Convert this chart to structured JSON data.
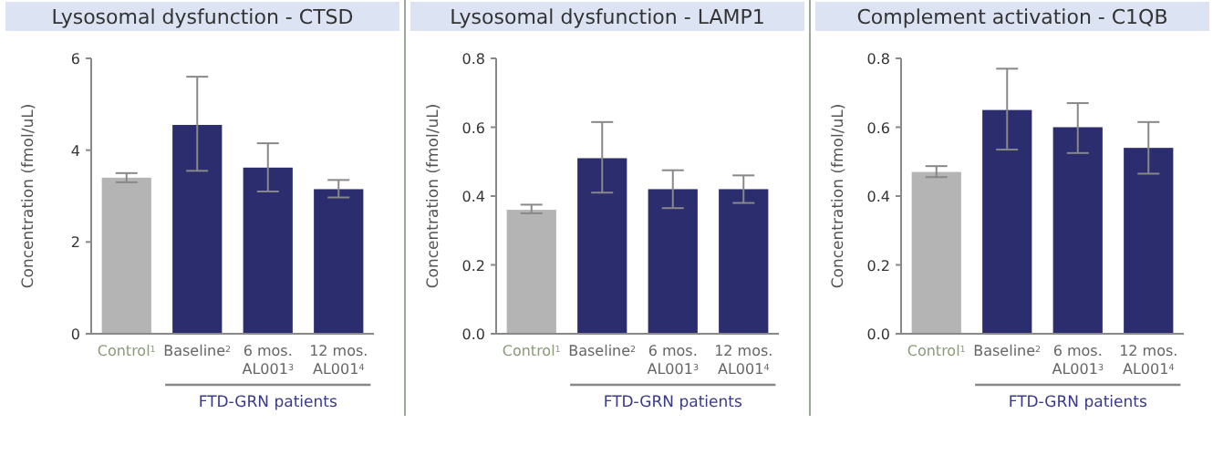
{
  "chart_data": [
    {
      "type": "bar",
      "title": "Lysosomal dysfunction - CTSD",
      "ylabel": "Concentration (fmol/uL)",
      "categories": [
        "Control$^{1}$",
        "Baseline$^{2}$",
        "6 mos.\nAL001$^{3}$",
        "12 mos.\nAL001$^{4}$"
      ],
      "values": [
        3.4,
        4.55,
        3.62,
        3.15
      ],
      "colors": [
        "#b4b4b4",
        "#2b2d6e",
        "#2b2d6e",
        "#2b2d6e"
      ],
      "errors": [
        [
          3.3,
          3.5
        ],
        [
          3.55,
          5.6
        ],
        [
          3.1,
          4.15
        ],
        [
          2.97,
          3.35
        ]
      ],
      "ylim": [
        0,
        6
      ],
      "yticks": [
        0,
        2,
        4,
        6
      ],
      "grid": false,
      "annotations": [
        "FTD-GRN patients"
      ]
    },
    {
      "type": "bar",
      "title": "Lysosomal dysfunction - LAMP1",
      "ylabel": "Concentration (fmol/uL)",
      "categories": [
        "Control$^{1}$",
        "Baseline$^{2}$",
        "6 mos.\nAL001$^{3}$",
        "12 mos.\nAL001$^{4}$"
      ],
      "values": [
        0.36,
        0.51,
        0.42,
        0.42
      ],
      "colors": [
        "#b4b4b4",
        "#2b2d6e",
        "#2b2d6e",
        "#2b2d6e"
      ],
      "errors": [
        [
          0.35,
          0.375
        ],
        [
          0.41,
          0.615
        ],
        [
          0.365,
          0.475
        ],
        [
          0.38,
          0.46
        ]
      ],
      "ylim": [
        0,
        0.8
      ],
      "yticks": [
        {
          "value": 0,
          "label": "0.0"
        },
        0.2,
        0.4,
        0.6,
        0.8
      ],
      "grid": false,
      "annotations": [
        "FTD-GRN patients"
      ]
    },
    {
      "type": "bar",
      "title": "Complement activation - C1QB",
      "ylabel": "Concentration (fmol/uL)",
      "categories": [
        "Control$^{1}$",
        "Baseline$^{2}$",
        "6 mos.\nAL001$^{3}$",
        "12 mos.\nAL001$^{4}$"
      ],
      "values": [
        0.47,
        0.65,
        0.6,
        0.54
      ],
      "colors": [
        "#b4b4b4",
        "#2b2d6e",
        "#2b2d6e",
        "#2b2d6e"
      ],
      "errors": [
        [
          0.455,
          0.487
        ],
        [
          0.535,
          0.77
        ],
        [
          0.525,
          0.67
        ],
        [
          0.465,
          0.615
        ]
      ],
      "ylim": [
        0,
        0.8
      ],
      "yticks": [
        {
          "value": 0,
          "label": "0.0"
        },
        0.2,
        0.4,
        0.6,
        0.8
      ],
      "grid": false,
      "annotations": [
        "FTD-GRN patients"
      ]
    }
  ]
}
